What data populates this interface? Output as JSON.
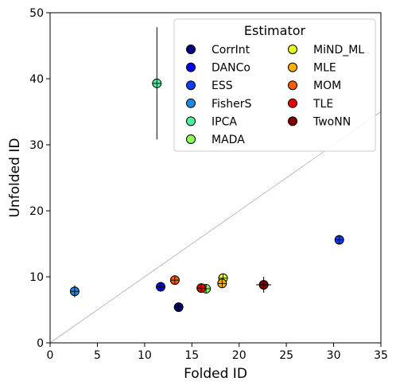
{
  "chart_data": {
    "type": "scatter",
    "xlabel": "Folded ID",
    "ylabel": "Unfolded ID",
    "xlim": [
      0,
      35
    ],
    "ylim": [
      0,
      50
    ],
    "xticks": [
      0,
      5,
      10,
      15,
      20,
      25,
      30,
      35
    ],
    "yticks": [
      0,
      10,
      20,
      30,
      40,
      50
    ],
    "grid": false,
    "reference_line": "y = x",
    "legend": {
      "title": "Estimator",
      "placement": "top-right",
      "columns": 2
    },
    "series": [
      {
        "name": "CorrInt",
        "color": "#00007f",
        "x": 13.6,
        "y": 5.4,
        "xerr": 0.0,
        "yerr": 0.3
      },
      {
        "name": "DANCo",
        "color": "#0000e6",
        "x": 11.7,
        "y": 8.5,
        "xerr": 0.0,
        "yerr": 0.3
      },
      {
        "name": "ESS",
        "color": "#0c3cff",
        "x": 30.6,
        "y": 15.6,
        "xerr": 0.0,
        "yerr": 0.3
      },
      {
        "name": "FisherS",
        "color": "#1e88e5",
        "x": 2.6,
        "y": 7.8,
        "xerr": 0.3,
        "yerr": 0.9
      },
      {
        "name": "IPCA",
        "color": "#4df0a0",
        "x": 11.3,
        "y": 39.3,
        "xerr": 0.0,
        "yerr": 8.5
      },
      {
        "name": "MADA",
        "color": "#8cff5a",
        "x": 16.5,
        "y": 8.2,
        "xerr": 0.0,
        "yerr": 0.3
      },
      {
        "name": "MiND_ML",
        "color": "#e8ff1a",
        "x": 18.3,
        "y": 9.8,
        "xerr": 0.0,
        "yerr": 0.3
      },
      {
        "name": "MLE",
        "color": "#ffb000",
        "x": 18.2,
        "y": 9.0,
        "xerr": 0.0,
        "yerr": 0.5
      },
      {
        "name": "MOM",
        "color": "#ff5a00",
        "x": 13.2,
        "y": 9.5,
        "xerr": 0.0,
        "yerr": 0.3
      },
      {
        "name": "TLE",
        "color": "#e60000",
        "x": 16.0,
        "y": 8.3,
        "xerr": 0.3,
        "yerr": 0.3
      },
      {
        "name": "TwoNN",
        "color": "#7f0000",
        "x": 22.6,
        "y": 8.8,
        "xerr": 0.8,
        "yerr": 1.2
      }
    ]
  }
}
